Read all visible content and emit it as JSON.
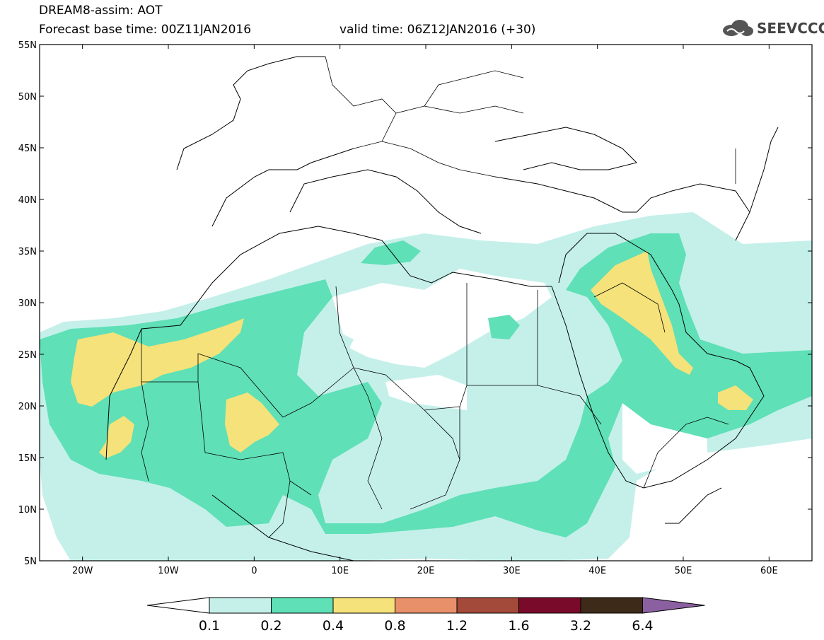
{
  "header": {
    "title": "DREAM8-assim: AOT",
    "base_time": "Forecast base time: 00Z11JAN2016",
    "valid_time": "valid time: 06Z12JAN2016 (+30)"
  },
  "logo": {
    "text": "SEEVCCC",
    "icon": "cloud-icon"
  },
  "map": {
    "lon_ticks": [
      "20W",
      "10W",
      "0",
      "10E",
      "20E",
      "30E",
      "40E",
      "50E",
      "60E"
    ],
    "lat_ticks": [
      "55N",
      "50N",
      "45N",
      "40N",
      "35N",
      "30N",
      "25N",
      "20N",
      "15N",
      "10N",
      "5N"
    ]
  },
  "colorbar": {
    "levels": [
      "0.1",
      "0.2",
      "0.4",
      "0.8",
      "1.2",
      "1.6",
      "3.2",
      "6.4"
    ],
    "colors": [
      "#ffffff",
      "#c5f0ea",
      "#5fe0b6",
      "#f5e27a",
      "#e8906a",
      "#a44a3a",
      "#7a0a2a",
      "#3e2a18",
      "#8a60a0"
    ]
  }
}
